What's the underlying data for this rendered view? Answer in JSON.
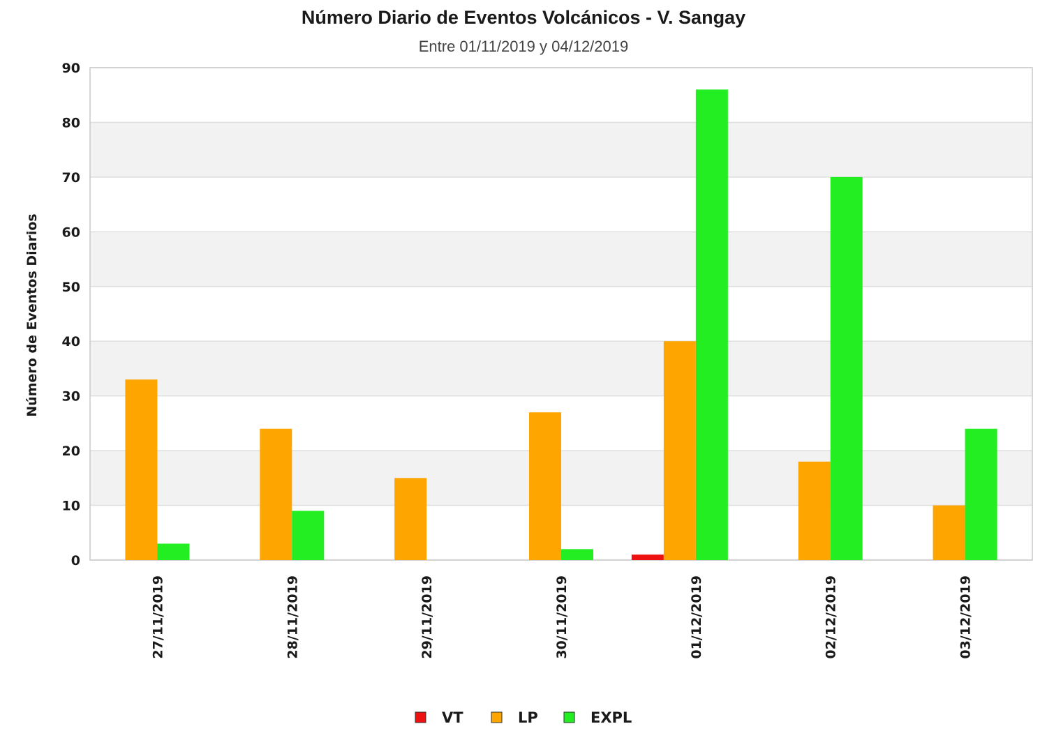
{
  "chart_data": {
    "type": "bar",
    "title": "Número Diario de Eventos Volcánicos -  V. Sangay",
    "subtitle": "Entre 01/11/2019 y 04/12/2019",
    "ylabel": "Número de Eventos Diarios",
    "xlabel": "",
    "ylim": [
      0,
      90
    ],
    "yticks": [
      0,
      10,
      20,
      30,
      40,
      50,
      60,
      70,
      80,
      90
    ],
    "grid": true,
    "legend_position": "bottom",
    "categories": [
      "27/11/2019",
      "28/11/2019",
      "29/11/2019",
      "30/11/2019",
      "01/12/2019",
      "02/12/2019",
      "03/12/2019"
    ],
    "series": [
      {
        "name": "VT",
        "color": "#ee1111",
        "values": [
          0,
          0,
          0,
          0,
          1,
          0,
          0
        ]
      },
      {
        "name": "LP",
        "color": "#ffa500",
        "values": [
          33,
          24,
          15,
          27,
          40,
          18,
          10
        ]
      },
      {
        "name": "EXPL",
        "color": "#22ee22",
        "values": [
          3,
          9,
          0,
          2,
          86,
          70,
          24
        ]
      }
    ]
  }
}
